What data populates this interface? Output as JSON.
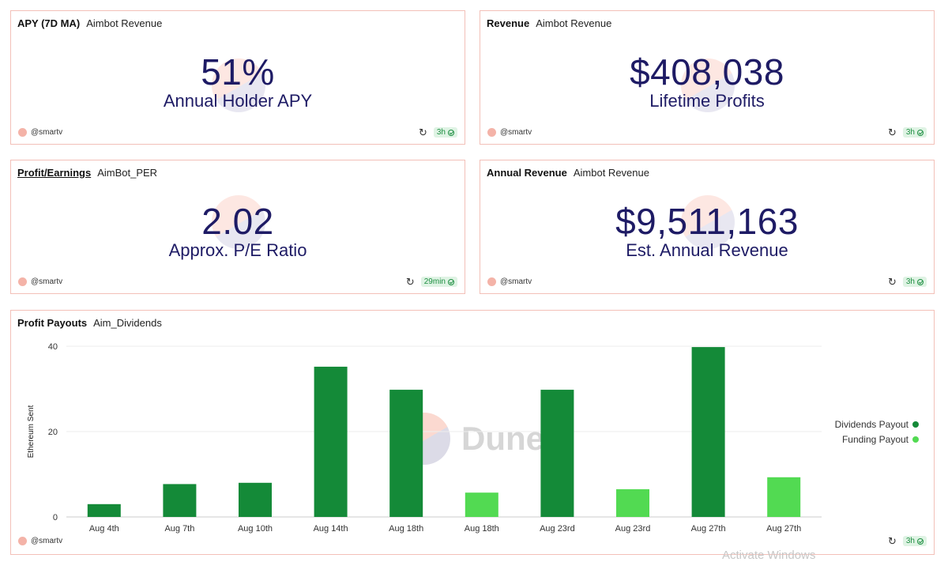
{
  "cards": [
    {
      "title": "APY (7D MA)",
      "query": "Aimbot Revenue",
      "value": "51%",
      "subtitle": "Annual Holder APY",
      "author": "@smartv",
      "age": "3h"
    },
    {
      "title": "Revenue",
      "query": "Aimbot Revenue",
      "value": "$408,038",
      "subtitle": "Lifetime Profits",
      "author": "@smartv",
      "age": "3h"
    },
    {
      "title": "Profit/Earnings",
      "query": "AimBot_PER",
      "value": "2.02",
      "subtitle": "Approx. P/E Ratio",
      "author": "@smartv",
      "age": "29min"
    },
    {
      "title": "Annual Revenue",
      "query": "Aimbot Revenue",
      "value": "$9,511,163",
      "subtitle": "Est. Annual Revenue",
      "author": "@smartv",
      "age": "3h"
    }
  ],
  "chart_card": {
    "title": "Profit Payouts",
    "query": "Aim_Dividends",
    "author": "@smartv",
    "age": "3h"
  },
  "chart_data": {
    "type": "bar",
    "ylabel": "Ethereum Sent",
    "xlabel": "",
    "ylim": [
      0,
      40
    ],
    "yticks": [
      0,
      20,
      40
    ],
    "grid": true,
    "legend_position": "right",
    "categories": [
      "Aug 4th",
      "Aug 7th",
      "Aug 10th",
      "Aug 14th",
      "Aug 18th",
      "Aug 18th",
      "Aug 23rd",
      "Aug 23rd",
      "Aug 27th",
      "Aug 27th"
    ],
    "series": [
      {
        "name": "Dividends Payout",
        "color": "#148a38",
        "values": [
          3,
          7.7,
          8,
          35.2,
          29.8,
          null,
          29.8,
          null,
          39.8,
          null
        ]
      },
      {
        "name": "Funding Payout",
        "color": "#52da52",
        "values": [
          null,
          null,
          null,
          null,
          null,
          5.7,
          null,
          6.5,
          null,
          9.3
        ]
      }
    ]
  },
  "watermark": {
    "word": "Dune"
  },
  "os_overlay": {
    "text": "Activate Windows"
  }
}
